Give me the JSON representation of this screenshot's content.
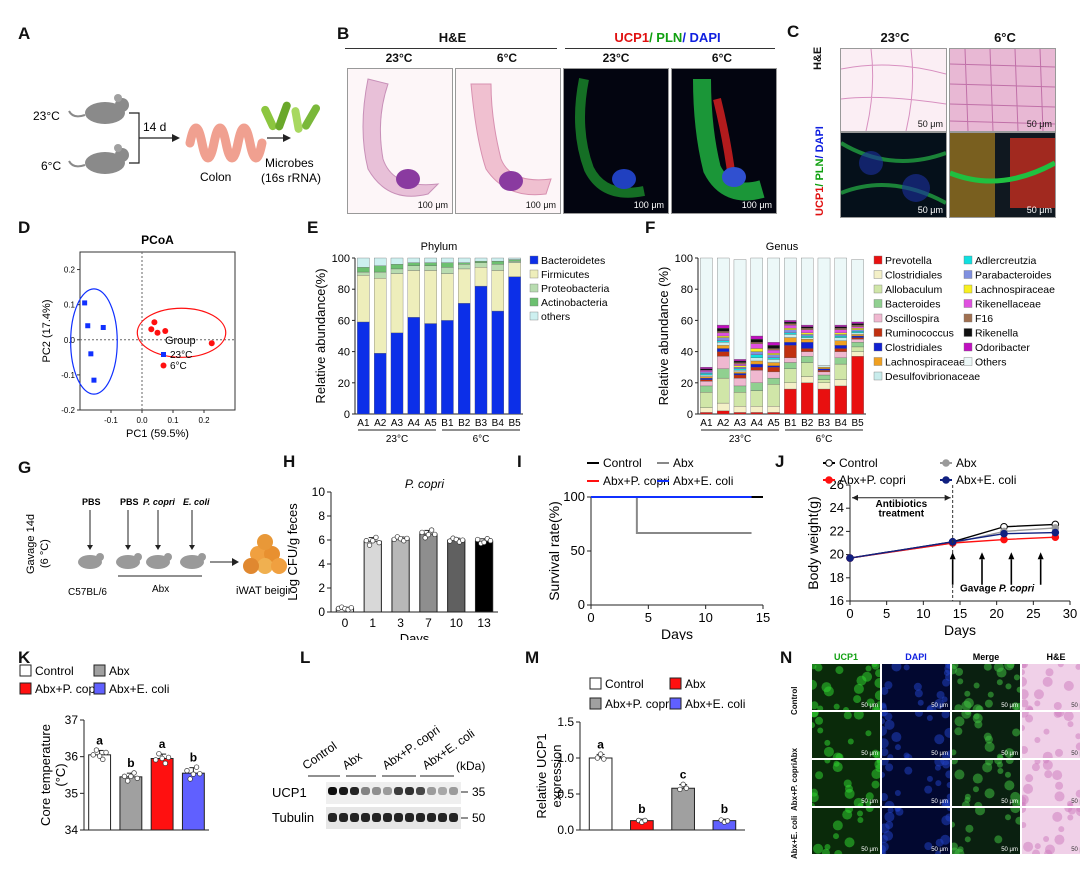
{
  "panels": {
    "A": {
      "label": "A",
      "temp_warm": "23°C",
      "temp_cold": "6°C",
      "duration": "14 d",
      "organ": "Colon",
      "microbes_1": "Microbes",
      "microbes_2": "(16s rRNA)"
    },
    "B": {
      "label": "B",
      "he_header": "H&E",
      "if_ucp1": "UCP1",
      "if_pln": "/ PLN",
      "if_dapi": "/ DAPI",
      "col_23": "23°C",
      "col_6": "6°C",
      "scale": "100 μm"
    },
    "C": {
      "label": "C",
      "col_23": "23°C",
      "col_6": "6°C",
      "row_he": "H&E",
      "row_if_ucp1": "UCP1",
      "row_if_pln": "/ PLN",
      "row_if_dapi": "/ DAPI",
      "scale": "50 μm"
    },
    "D": {
      "label": "D"
    },
    "E": {
      "label": "E"
    },
    "F": {
      "label": "F"
    },
    "G": {
      "label": "G",
      "gavage_1": "Gavage 14d",
      "gavage_2": "(6 °C)",
      "pbs1": "PBS",
      "pbs2": "PBS",
      "pcopri": "P. copri",
      "ecoli": "E. coli",
      "strain": "C57BL/6",
      "abx": "Abx",
      "outcome": "iWAT beiging"
    },
    "H": {
      "label": "H"
    },
    "I": {
      "label": "I"
    },
    "J": {
      "label": "J",
      "abx_box": "Antibiotics",
      "abx_box2": "treatment",
      "gavage": "Gavage",
      "gavage_sp": "P. copri"
    },
    "K": {
      "label": "K"
    },
    "L": {
      "label": "L",
      "lanes": [
        "Control",
        "Abx",
        "Abx+P. copri",
        "Abx+E. coli"
      ],
      "kda": "(kDa)",
      "rows": [
        "UCP1",
        "Tubulin"
      ],
      "markers": [
        "35",
        "50"
      ]
    },
    "M": {
      "label": "M"
    },
    "N": {
      "label": "N",
      "cols": [
        "UCP1",
        "DAPI",
        "Merge",
        "H&E"
      ],
      "rows": [
        "Control",
        "Abx",
        "Abx+P. copri",
        "Abx+E. coli"
      ],
      "scale": "50 μm"
    }
  },
  "chart_data": [
    {
      "id": "D",
      "type": "scatter",
      "title": "PCoA",
      "xlabel": "PC1 (59.5%)",
      "ylabel": "PC2 (17.4%)",
      "xlim": [
        -0.2,
        0.3
      ],
      "ylim": [
        -0.2,
        0.25
      ],
      "xticks": [
        -0.1,
        0.0,
        0.1,
        0.2
      ],
      "yticks": [
        -0.2,
        -0.1,
        0.0,
        0.1,
        0.2
      ],
      "xticklabels": [
        "-0.1",
        "0.0",
        "0.1",
        "0.2"
      ],
      "yticklabels": [
        "-0.2",
        "-0.1",
        "0.0",
        "0.1",
        "0.2"
      ],
      "legend_title": "Group",
      "series": [
        {
          "name": "23°C",
          "color": "#1030ff",
          "points": [
            [
              -0.185,
              0.105
            ],
            [
              -0.175,
              0.04
            ],
            [
              -0.165,
              -0.04
            ],
            [
              -0.155,
              -0.115
            ],
            [
              -0.125,
              0.035
            ]
          ]
        },
        {
          "name": "6°C",
          "color": "#ff1010",
          "points": [
            [
              0.03,
              0.03
            ],
            [
              0.04,
              0.05
            ],
            [
              0.05,
              0.02
            ],
            [
              0.075,
              0.025
            ],
            [
              0.225,
              -0.01
            ]
          ]
        }
      ]
    },
    {
      "id": "E",
      "type": "bar",
      "stacked": true,
      "title": "Phylum",
      "ylabel": "Relative abundance(%)",
      "ylim": [
        0,
        100
      ],
      "yticks": [
        0,
        20,
        40,
        60,
        80,
        100
      ],
      "categories": [
        "A1",
        "A2",
        "A3",
        "A4",
        "A5",
        "B1",
        "B2",
        "B3",
        "B4",
        "B5"
      ],
      "groups": [
        {
          "label": "23°C",
          "from": 0,
          "to": 4
        },
        {
          "label": "6°C",
          "from": 5,
          "to": 9
        }
      ],
      "series": [
        {
          "name": "Bacteroidetes",
          "color": "#0c2fe8",
          "values": [
            59,
            39,
            52,
            62,
            58,
            60,
            71,
            82,
            66,
            88
          ]
        },
        {
          "name": "Firmicutes",
          "color": "#eeeebb",
          "values": [
            30,
            48,
            38,
            30,
            34,
            30,
            22,
            12,
            26,
            9
          ]
        },
        {
          "name": "Proteobacteria",
          "color": "#b8dcb0",
          "values": [
            2,
            4,
            3,
            3,
            3,
            4,
            3,
            3,
            4,
            1
          ]
        },
        {
          "name": "Actinobacteria",
          "color": "#6cc070",
          "values": [
            3,
            4,
            3,
            2,
            2,
            3,
            1,
            1,
            2,
            1
          ]
        },
        {
          "name": "others",
          "color": "#cdf0f0",
          "values": [
            6,
            5,
            4,
            3,
            3,
            3,
            3,
            2,
            2,
            1
          ]
        }
      ]
    },
    {
      "id": "F",
      "type": "bar",
      "stacked": true,
      "title": "Genus",
      "ylabel": "Relative abundance (%)",
      "ylim": [
        0,
        100
      ],
      "yticks": [
        0,
        20,
        40,
        60,
        80,
        100
      ],
      "categories": [
        "A1",
        "A2",
        "A3",
        "A4",
        "A5",
        "B1",
        "B2",
        "B3",
        "B4",
        "B5"
      ],
      "groups": [
        {
          "label": "23°C",
          "from": 0,
          "to": 4
        },
        {
          "label": "6°C",
          "from": 5,
          "to": 9
        }
      ],
      "series": [
        {
          "name": "Prevotella",
          "color": "#e81010",
          "values": [
            1,
            2,
            1,
            1,
            1,
            16,
            20,
            16,
            18,
            37
          ]
        },
        {
          "name": "Clostridiales",
          "color": "#f4f0c8",
          "values": [
            3,
            5,
            4,
            4,
            4,
            4,
            4,
            4,
            4,
            3
          ]
        },
        {
          "name": "Allobaculum",
          "color": "#d0e6a8",
          "values": [
            10,
            16,
            9,
            10,
            14,
            9,
            9,
            2,
            10,
            3
          ]
        },
        {
          "name": "Bacteroides",
          "color": "#90d090",
          "values": [
            4,
            6,
            4,
            5,
            4,
            4,
            4,
            3,
            4,
            3
          ]
        },
        {
          "name": "Oscillospira",
          "color": "#f0b8d0",
          "values": [
            3,
            8,
            5,
            8,
            4,
            3,
            3,
            2,
            4,
            2
          ]
        },
        {
          "name": "Ruminococcus",
          "color": "#c03010",
          "values": [
            1,
            3,
            2,
            2,
            3,
            8,
            2,
            1,
            2,
            1
          ]
        },
        {
          "name": "Clostridiales ",
          "color": "#1020d0",
          "values": [
            1,
            2,
            1,
            2,
            1,
            2,
            4,
            1,
            2,
            1
          ]
        },
        {
          "name": "Lachnospiraceae",
          "color": "#f0a020",
          "values": [
            1,
            2,
            1,
            2,
            2,
            3,
            2,
            1,
            3,
            1
          ]
        },
        {
          "name": "Desulfovibrionaceae",
          "color": "#c8ecec",
          "values": [
            1,
            2,
            1,
            2,
            2,
            2,
            1,
            1,
            2,
            1
          ]
        },
        {
          "name": "Adlercreutzia",
          "color": "#10e0e0",
          "values": [
            1,
            1,
            1,
            2,
            1,
            1,
            1,
            0,
            1,
            1
          ]
        },
        {
          "name": "Parabacteroides",
          "color": "#8090e0",
          "values": [
            1,
            2,
            1,
            2,
            2,
            2,
            1,
            0,
            1,
            1
          ]
        },
        {
          "name": "Lachnospiraceae ",
          "color": "#f8f020",
          "values": [
            0,
            1,
            1,
            2,
            1,
            1,
            1,
            0,
            1,
            1
          ]
        },
        {
          "name": "Rikenellaceae",
          "color": "#e050e0",
          "values": [
            1,
            2,
            1,
            3,
            2,
            2,
            2,
            0,
            2,
            1
          ]
        },
        {
          "name": "F16",
          "color": "#a07050",
          "values": [
            0,
            1,
            1,
            1,
            1,
            1,
            1,
            0,
            1,
            1
          ]
        },
        {
          "name": "Rikenella",
          "color": "#101010",
          "values": [
            1,
            2,
            1,
            2,
            2,
            1,
            1,
            0,
            1,
            1
          ]
        },
        {
          "name": "Odoribacter",
          "color": "#c010c0",
          "values": [
            1,
            2,
            1,
            2,
            2,
            1,
            1,
            0,
            1,
            1
          ]
        },
        {
          "name": "Others",
          "color": "#ecf8f8",
          "values": [
            70,
            43,
            64,
            50,
            54,
            40,
            43,
            69,
            43,
            40
          ]
        }
      ]
    },
    {
      "id": "H",
      "type": "bar",
      "title": "P. copri",
      "xlabel": "Days",
      "ylabel": "Log CFU/g feces",
      "ylim": [
        0,
        10
      ],
      "yticks": [
        0,
        2,
        4,
        6,
        8,
        10
      ],
      "categories": [
        "0",
        "1",
        "3",
        "7",
        "10",
        "13"
      ],
      "values": [
        0.3,
        5.9,
        6.1,
        6.5,
        6.0,
        5.9
      ],
      "errors": [
        0.1,
        0.3,
        0.15,
        0.3,
        0.15,
        0.2
      ],
      "colors": [
        "#ffffff",
        "#d8d8d8",
        "#b8b8b8",
        "#8e8e8e",
        "#606060",
        "#000000"
      ]
    },
    {
      "id": "I",
      "type": "line",
      "xlabel": "Days",
      "ylabel": "Survival rate(%)",
      "xlim": [
        0,
        15
      ],
      "ylim": [
        0,
        100
      ],
      "xticks": [
        0,
        5,
        10,
        15
      ],
      "yticks": [
        0,
        50,
        100
      ],
      "series": [
        {
          "name": "Control",
          "color": "#000000",
          "x": [
            0,
            15
          ],
          "y": [
            100,
            100
          ]
        },
        {
          "name": "Abx",
          "color": "#888888",
          "x": [
            0,
            4,
            4,
            14
          ],
          "y": [
            100,
            100,
            66.7,
            66.7
          ]
        },
        {
          "name": "Abx+P. copri",
          "color": "#ff1010",
          "x": [
            0,
            14
          ],
          "y": [
            100,
            100
          ]
        },
        {
          "name": "Abx+E. coli",
          "color": "#1030ff",
          "x": [
            0,
            14
          ],
          "y": [
            100,
            100
          ]
        }
      ]
    },
    {
      "id": "J",
      "type": "line",
      "xlabel": "Days",
      "ylabel": "Body weight(g)",
      "xlim": [
        0,
        30
      ],
      "ylim": [
        16,
        26
      ],
      "xticks": [
        0,
        5,
        10,
        15,
        20,
        25,
        30
      ],
      "yticks": [
        16,
        18,
        20,
        22,
        24,
        26
      ],
      "series": [
        {
          "name": "Control",
          "color": "#000000",
          "x": [
            0,
            14,
            21,
            28
          ],
          "y": [
            19.7,
            21.1,
            22.4,
            22.6
          ]
        },
        {
          "name": "Abx",
          "color": "#9a9a9a",
          "x": [
            0,
            14,
            21,
            28
          ],
          "y": [
            19.7,
            21.0,
            22.0,
            22.3
          ]
        },
        {
          "name": "Abx+P. copri",
          "color": "#ff1010",
          "x": [
            0,
            14,
            21,
            28
          ],
          "y": [
            19.7,
            21.0,
            21.3,
            21.5
          ]
        },
        {
          "name": "Abx+E. coli",
          "color": "#102080",
          "x": [
            0,
            14,
            21,
            28
          ],
          "y": [
            19.7,
            21.1,
            21.8,
            21.9
          ]
        }
      ]
    },
    {
      "id": "K",
      "type": "bar",
      "ylabel": "Core temperature (°C)",
      "ylim": [
        34,
        37
      ],
      "yticks": [
        34,
        35,
        36,
        37
      ],
      "categories": [
        "Control",
        "Abx",
        "Abx+P. copri",
        "Abx+E. coli"
      ],
      "values": [
        36.05,
        35.45,
        35.95,
        35.55
      ],
      "errors": [
        0.12,
        0.1,
        0.12,
        0.15
      ],
      "letters": [
        "a",
        "b",
        "a",
        "b"
      ],
      "colors": [
        "#ffffff",
        "#a0a0a0",
        "#ff1010",
        "#6060ff"
      ]
    },
    {
      "id": "M",
      "type": "bar",
      "ylabel": "Relative UCP1 expression",
      "ylim": [
        0,
        1.5
      ],
      "yticks": [
        0.0,
        0.5,
        1.0,
        1.5
      ],
      "categories": [
        "Control",
        "Abx",
        "Abx+P. copri",
        "Abx+E. coli"
      ],
      "values": [
        1.0,
        0.13,
        0.58,
        0.13
      ],
      "errors": [
        0.05,
        0.02,
        0.05,
        0.02
      ],
      "letters": [
        "a",
        "b",
        "c",
        "b"
      ],
      "colors": [
        "#ffffff",
        "#ff1010",
        "#a0a0a0",
        "#6060ff"
      ]
    }
  ],
  "legend_text": {
    "K_items": [
      "Control",
      "Abx",
      "Abx+P. copri",
      "Abx+E. coli"
    ],
    "M_items": [
      "Control",
      "Abx",
      "Abx+P. copri",
      "Abx+E. coli"
    ]
  }
}
